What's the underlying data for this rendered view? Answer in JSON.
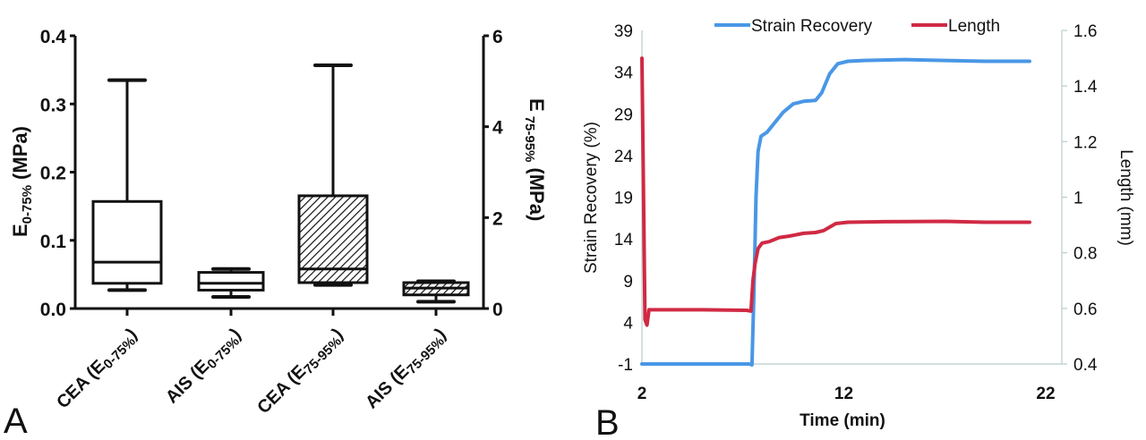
{
  "chart_data": [
    {
      "panel_label": "A",
      "type": "box",
      "categories": [
        {
          "prefix": "CEA (E",
          "sub": "0-75%",
          "suffix": ")"
        },
        {
          "prefix": "AIS (E",
          "sub": "0-75%",
          "suffix": ")"
        },
        {
          "prefix": "CEA (E",
          "sub": "75-95%",
          "suffix": ")"
        },
        {
          "prefix": "AIS (E",
          "sub": "75-95%",
          "suffix": ")"
        }
      ],
      "series": [
        {
          "name": "CEA (E0-75%)",
          "axis": "left",
          "hatched": false,
          "whisker_low": 0.027,
          "q1": 0.037,
          "median": 0.068,
          "q3": 0.157,
          "whisker_high": 0.335
        },
        {
          "name": "AIS (E0-75%)",
          "axis": "left",
          "hatched": false,
          "whisker_low": 0.017,
          "q1": 0.027,
          "median": 0.037,
          "q3": 0.053,
          "whisker_high": 0.058
        },
        {
          "name": "CEA (E75-95%)",
          "axis": "right",
          "hatched": true,
          "whisker_low": 0.52,
          "q1": 0.57,
          "median": 0.87,
          "q3": 2.48,
          "whisker_high": 5.35
        },
        {
          "name": "AIS (E75-95%)",
          "axis": "right",
          "hatched": true,
          "whisker_low": 0.15,
          "q1": 0.3,
          "median": 0.45,
          "q3": 0.57,
          "whisker_high": 0.6
        }
      ],
      "left_axis": {
        "title_main": "E",
        "title_sub": "0-75%",
        "title_unit": "(MPa)",
        "ylim": [
          0,
          0.4
        ],
        "ticks": [
          "0.0",
          "0.1",
          "0.2",
          "0.3",
          "0.4"
        ],
        "tick_values": [
          0,
          0.1,
          0.2,
          0.3,
          0.4
        ]
      },
      "right_axis": {
        "title_main": "E",
        "title_sub": "75-95%",
        "title_unit": "(MPa)",
        "ylim": [
          0,
          6
        ],
        "ticks": [
          "0",
          "2",
          "4",
          "6"
        ],
        "tick_values": [
          0,
          2,
          4,
          6
        ]
      },
      "grid": false
    },
    {
      "panel_label": "B",
      "type": "line",
      "xlabel": "Time (min)",
      "xlim": [
        2,
        22
      ],
      "x_ticks": [
        "2",
        "12",
        "22"
      ],
      "x_tick_values": [
        2,
        12,
        22
      ],
      "left_axis": {
        "title": "Strain Recovery (%)",
        "ylim": [
          -1,
          39
        ],
        "ticks": [
          "-1",
          "4",
          "9",
          "14",
          "19",
          "24",
          "29",
          "34",
          "39"
        ],
        "tick_values": [
          -1,
          4,
          9,
          14,
          19,
          24,
          29,
          34,
          39
        ]
      },
      "right_axis": {
        "title": "Length (mm)",
        "ylim": [
          0.4,
          1.6
        ],
        "ticks": [
          "0.4",
          "0.6",
          "0.8",
          "1",
          "1.2",
          "1.4",
          "1.6"
        ],
        "tick_values": [
          0.4,
          0.6,
          0.8,
          1.0,
          1.2,
          1.4,
          1.6
        ]
      },
      "legend": {
        "position": "top",
        "entries": [
          "Strain Recovery",
          "Length"
        ]
      },
      "colors": {
        "strain": "#4a97e6",
        "length": "#d02a44",
        "axis": "#b9cccc"
      },
      "grid": false,
      "series": [
        {
          "name": "Strain Recovery",
          "axis": "left",
          "x": [
            2.0,
            7.3,
            7.45,
            7.55,
            7.65,
            7.75,
            7.9,
            8.2,
            8.6,
            9.0,
            9.5,
            10.0,
            10.6,
            10.9,
            11.3,
            11.7,
            12.2,
            13.0,
            15.0,
            17.0,
            19.0,
            21.2
          ],
          "y": [
            -1.0,
            -1.0,
            -1.1,
            8.0,
            19.0,
            24.5,
            26.3,
            26.8,
            28.0,
            29.2,
            30.2,
            30.5,
            30.6,
            31.5,
            33.8,
            35.0,
            35.3,
            35.4,
            35.5,
            35.4,
            35.3,
            35.3
          ]
        },
        {
          "name": "Length",
          "axis": "left-scale-right",
          "x": [
            2.0,
            2.15,
            2.25,
            2.35,
            3.0,
            5.0,
            7.2,
            7.4,
            7.5,
            7.6,
            7.75,
            7.95,
            8.3,
            8.8,
            9.3,
            10.0,
            10.6,
            11.0,
            11.6,
            12.2,
            14.0,
            17.0,
            19.0,
            21.2
          ],
          "y": [
            1.5,
            0.56,
            0.54,
            0.595,
            0.595,
            0.595,
            0.593,
            0.59,
            0.7,
            0.76,
            0.815,
            0.835,
            0.84,
            0.855,
            0.86,
            0.87,
            0.873,
            0.88,
            0.905,
            0.91,
            0.912,
            0.913,
            0.91,
            0.91
          ]
        }
      ]
    }
  ]
}
